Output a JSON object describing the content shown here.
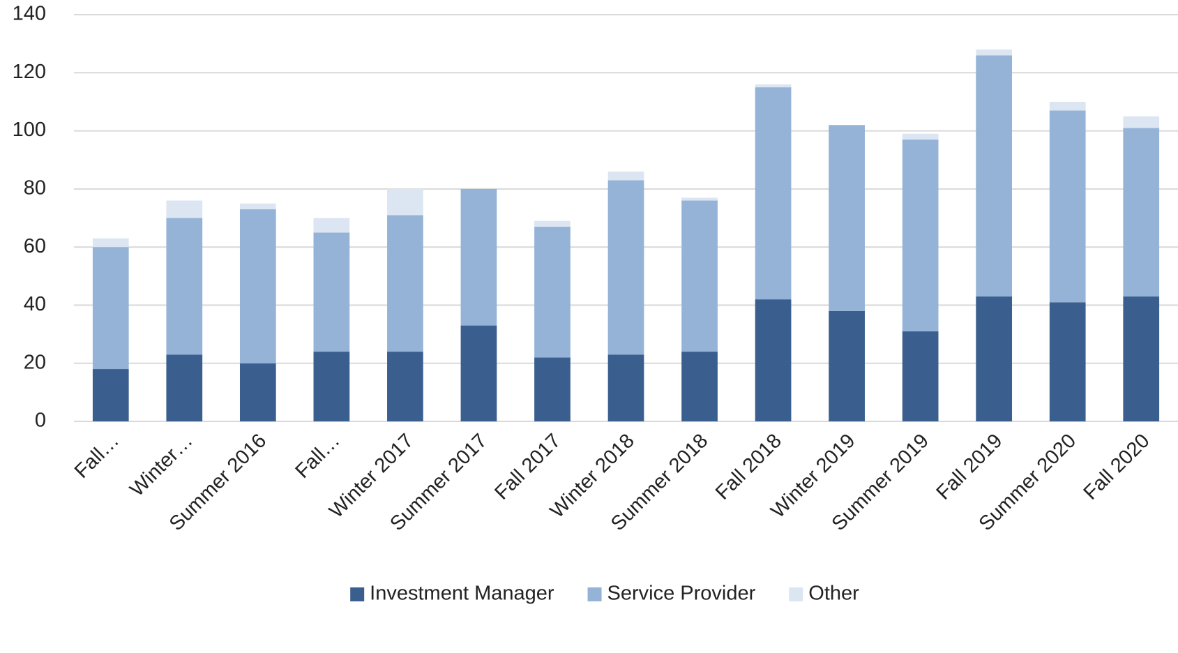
{
  "chart_data": {
    "type": "stacked_bar",
    "categories": [
      "Fall…",
      "Winter…",
      "Summer 2016",
      "Fall…",
      "Winter 2017",
      "Summer 2017",
      "Fall 2017",
      "Winter 2018",
      "Summer 2018",
      "Fall 2018",
      "Winter 2019",
      "Summer 2019",
      "Fall 2019",
      "Summer 2020",
      "Fall 2020"
    ],
    "series": [
      {
        "name": "Investment Manager",
        "color": "#3a5f8e",
        "values": [
          18,
          23,
          20,
          24,
          24,
          33,
          22,
          23,
          24,
          42,
          38,
          31,
          43,
          41,
          43
        ]
      },
      {
        "name": "Service Provider",
        "color": "#95b3d7",
        "values": [
          42,
          47,
          53,
          41,
          47,
          47,
          45,
          60,
          52,
          73,
          64,
          66,
          83,
          66,
          58
        ]
      },
      {
        "name": "Other",
        "color": "#dce6f2",
        "values": [
          3,
          6,
          2,
          5,
          9,
          0,
          2,
          3,
          1,
          1,
          0,
          2,
          2,
          3,
          4
        ]
      }
    ],
    "ylim": [
      0,
      140
    ],
    "yticks": [
      0,
      20,
      40,
      60,
      80,
      100,
      120,
      140
    ],
    "grid": true,
    "legend": "bottom"
  }
}
